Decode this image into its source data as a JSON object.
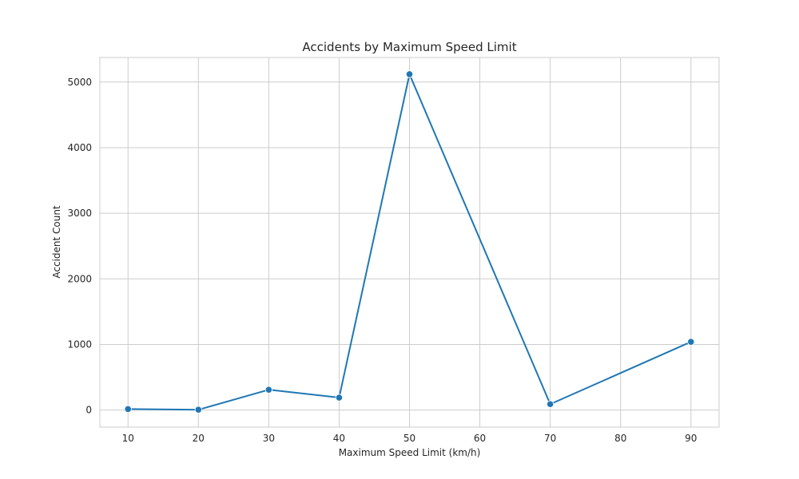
{
  "chart_data": {
    "type": "line",
    "title": "Accidents by Maximum Speed Limit",
    "xlabel": "Maximum Speed Limit (km/h)",
    "ylabel": "Accident Count",
    "x": [
      10,
      20,
      30,
      40,
      50,
      70,
      90
    ],
    "series": [
      {
        "name": "Accident Count",
        "values": [
          15,
          5,
          310,
          190,
          5120,
          90,
          1040
        ],
        "color": "#1f77b4"
      }
    ],
    "xticks": [
      "10",
      "20",
      "30",
      "40",
      "50",
      "60",
      "70",
      "80",
      "90"
    ],
    "yticks": [
      "0",
      "1000",
      "2000",
      "3000",
      "4000",
      "5000"
    ],
    "xlim": [
      6,
      94
    ],
    "ylim": [
      -260,
      5375
    ],
    "grid": true,
    "grid_color": "#cccccc",
    "axes_color": "#cccccc",
    "style": "seaborn whitegrid"
  }
}
